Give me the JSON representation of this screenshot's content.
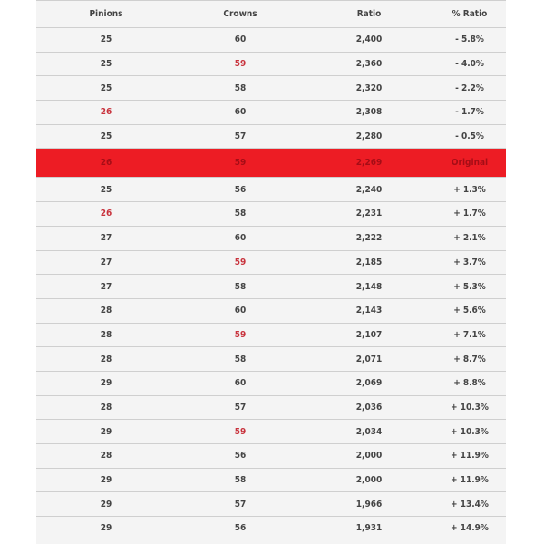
{
  "table": {
    "headers": [
      "Pinions",
      "Crowns",
      "Ratio",
      "% Ratio"
    ],
    "highlight_color": "#ed1c24",
    "accent_text_color": "#c8323c",
    "rows": [
      {
        "pinions": "25",
        "crowns": "60",
        "ratio": "2,400",
        "pct": "- 5.8%"
      },
      {
        "pinions": "25",
        "crowns": "59",
        "ratio": "2,360",
        "pct": "- 4.0%",
        "crowns_red": true
      },
      {
        "pinions": "25",
        "crowns": "58",
        "ratio": "2,320",
        "pct": "- 2.2%"
      },
      {
        "pinions": "26",
        "crowns": "60",
        "ratio": "2,308",
        "pct": "- 1.7%",
        "pinions_red": true
      },
      {
        "pinions": "25",
        "crowns": "57",
        "ratio": "2,280",
        "pct": "- 0.5%"
      },
      {
        "pinions": "26",
        "crowns": "59",
        "ratio": "2,269",
        "pct": "Original",
        "highlight": true
      },
      {
        "pinions": "25",
        "crowns": "56",
        "ratio": "2,240",
        "pct": "+ 1.3%"
      },
      {
        "pinions": "26",
        "crowns": "58",
        "ratio": "2,231",
        "pct": "+ 1.7%",
        "pinions_red": true
      },
      {
        "pinions": "27",
        "crowns": "60",
        "ratio": "2,222",
        "pct": "+ 2.1%"
      },
      {
        "pinions": "27",
        "crowns": "59",
        "ratio": "2,185",
        "pct": "+ 3.7%",
        "crowns_red": true
      },
      {
        "pinions": "27",
        "crowns": "58",
        "ratio": "2,148",
        "pct": "+ 5.3%"
      },
      {
        "pinions": "28",
        "crowns": "60",
        "ratio": "2,143",
        "pct": "+ 5.6%"
      },
      {
        "pinions": "28",
        "crowns": "59",
        "ratio": "2,107",
        "pct": "+ 7.1%",
        "crowns_red": true
      },
      {
        "pinions": "28",
        "crowns": "58",
        "ratio": "2,071",
        "pct": "+ 8.7%"
      },
      {
        "pinions": "29",
        "crowns": "60",
        "ratio": "2,069",
        "pct": "+ 8.8%"
      },
      {
        "pinions": "28",
        "crowns": "57",
        "ratio": "2,036",
        "pct": "+ 10.3%"
      },
      {
        "pinions": "29",
        "crowns": "59",
        "ratio": "2,034",
        "pct": "+ 10.3%",
        "crowns_red": true
      },
      {
        "pinions": "28",
        "crowns": "56",
        "ratio": "2,000",
        "pct": "+ 11.9%"
      },
      {
        "pinions": "29",
        "crowns": "58",
        "ratio": "2,000",
        "pct": "+ 11.9%"
      },
      {
        "pinions": "29",
        "crowns": "57",
        "ratio": "1,966",
        "pct": "+ 13.4%"
      },
      {
        "pinions": "29",
        "crowns": "56",
        "ratio": "1,931",
        "pct": "+ 14.9%"
      }
    ]
  }
}
